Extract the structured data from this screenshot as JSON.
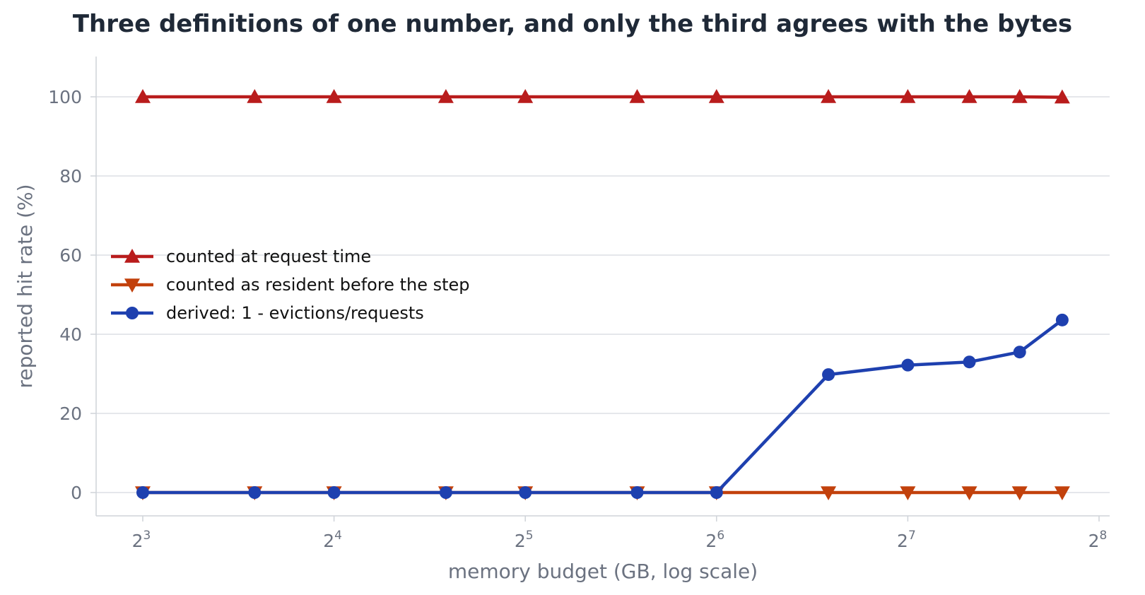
{
  "chart_data": {
    "type": "line",
    "title": "Three definitions of one number, and only the third agrees with the bytes",
    "xlabel": "memory budget (GB, log scale)",
    "ylabel": "reported hit rate (%)",
    "x_scale": "log2",
    "xlim": [
      7.3,
      256
    ],
    "ylim": [
      -6,
      110
    ],
    "x_ticks": [
      {
        "value": 8,
        "base": "2",
        "exp": "3"
      },
      {
        "value": 16,
        "base": "2",
        "exp": "4"
      },
      {
        "value": 32,
        "base": "2",
        "exp": "5"
      },
      {
        "value": 64,
        "base": "2",
        "exp": "6"
      },
      {
        "value": 128,
        "base": "2",
        "exp": "7"
      },
      {
        "value": 256,
        "base": "2",
        "exp": "8"
      }
    ],
    "y_ticks": [
      {
        "value": 0,
        "label": "0"
      },
      {
        "value": 20,
        "label": "20"
      },
      {
        "value": 40,
        "label": "40"
      },
      {
        "value": 60,
        "label": "60"
      },
      {
        "value": 80,
        "label": "80"
      },
      {
        "value": 100,
        "label": "100"
      }
    ],
    "grid": "horizontal",
    "legend_position": "center-left",
    "x": [
      8,
      12,
      16,
      24,
      32,
      48,
      64,
      96,
      128,
      160,
      192,
      224
    ],
    "series": [
      {
        "name": "counted at request time",
        "color": "#b91c1c",
        "marker": "triangle-up",
        "values": [
          100,
          100,
          100,
          100,
          100,
          100,
          100,
          100,
          100,
          100,
          100,
          99.9
        ]
      },
      {
        "name": "counted as resident before the step",
        "color": "#c2410c",
        "marker": "triangle-down",
        "values": [
          0,
          0,
          0,
          0,
          0,
          0,
          0,
          0,
          0,
          0,
          0,
          0
        ]
      },
      {
        "name": "derived: 1 - evictions/requests",
        "color": "#1e40af",
        "marker": "circle",
        "values": [
          0,
          0,
          0,
          0,
          0,
          0,
          0,
          29.8,
          32.2,
          33.0,
          35.5,
          43.6
        ]
      }
    ]
  }
}
